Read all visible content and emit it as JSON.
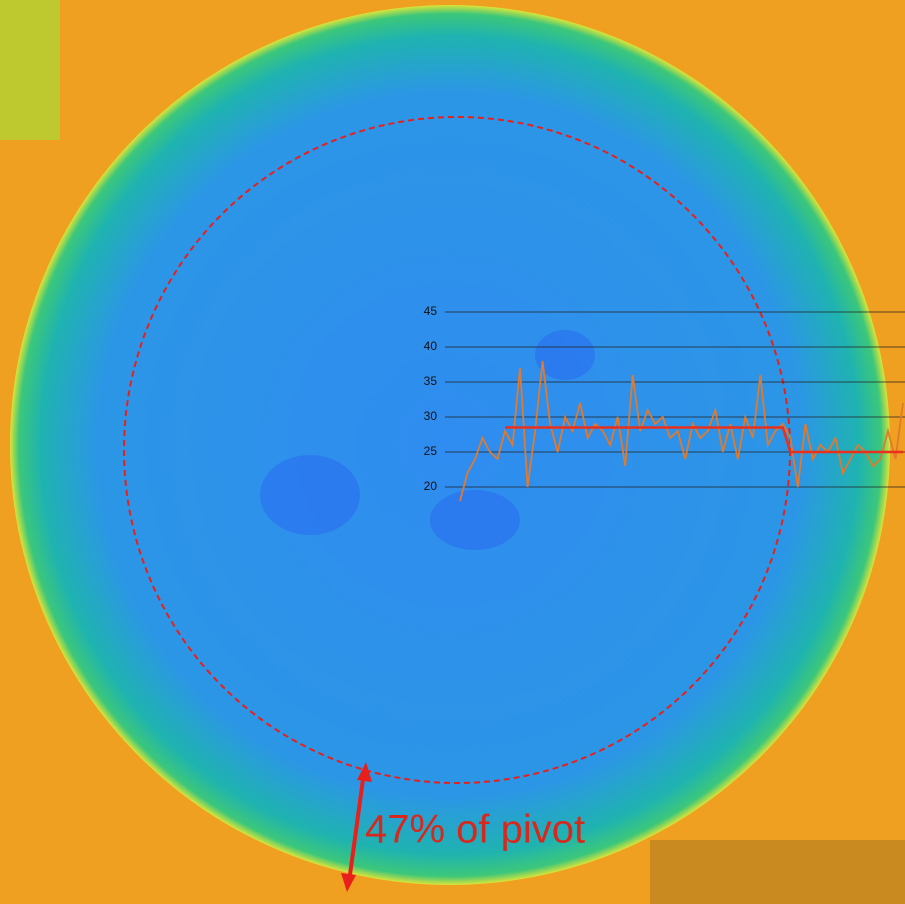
{
  "chart_data": {
    "type": "line",
    "annotation": "47% of pivot",
    "ylim": [
      20,
      45
    ],
    "yticks": [
      20,
      25,
      30,
      35,
      40,
      45
    ],
    "grid": true,
    "series": [
      {
        "color": "#e07a2e",
        "values": [
          18,
          22,
          24,
          27,
          25,
          24,
          28,
          26,
          37,
          20,
          28,
          38,
          29,
          25,
          30,
          28,
          32,
          27,
          29,
          28,
          26,
          30,
          23,
          36,
          28,
          31,
          29,
          30,
          27,
          28,
          24,
          29,
          27,
          28,
          31,
          25,
          29,
          24,
          30,
          27,
          36,
          26,
          28,
          29,
          27,
          20,
          29,
          24,
          26,
          25,
          27,
          22,
          24,
          26,
          25,
          23,
          24,
          28,
          24,
          32
        ]
      },
      {
        "color": "#e8301c",
        "values": [
          null,
          null,
          null,
          null,
          null,
          null,
          28.5,
          28.5,
          28.5,
          28.5,
          28.5,
          28.5,
          28.5,
          28.5,
          28.5,
          28.5,
          28.5,
          28.5,
          28.5,
          28.5,
          28.5,
          28.5,
          28.5,
          28.5,
          28.5,
          28.5,
          28.5,
          28.5,
          28.5,
          28.5,
          28.5,
          28.5,
          28.5,
          28.5,
          28.5,
          28.5,
          28.5,
          28.5,
          28.5,
          28.5,
          28.5,
          28.5,
          28.5,
          28.5,
          25,
          25,
          25,
          25,
          25,
          25,
          25,
          25,
          25,
          25,
          25,
          25,
          25,
          25,
          25,
          25
        ]
      }
    ]
  }
}
